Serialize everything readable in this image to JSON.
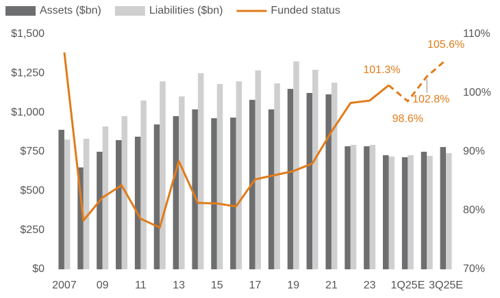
{
  "chart_data": {
    "type": "bar-line",
    "categories": [
      "2007",
      null,
      "09",
      null,
      "11",
      null,
      "13",
      null,
      "15",
      null,
      "17",
      null,
      "19",
      null,
      "21",
      null,
      "23",
      null,
      "1Q25E",
      null,
      "3Q25E"
    ],
    "series": [
      {
        "name": "Assets ($bn)",
        "color": "#6d6e70",
        "type": "bar",
        "values": [
          890,
          650,
          750,
          824,
          846,
          924,
          977,
          1020,
          964,
          968,
          1081,
          1020,
          1151,
          1125,
          1116,
          785,
          785,
          728,
          715,
          750,
          780
        ]
      },
      {
        "name": "Liabilities ($bn)",
        "color": "#cfcfcf",
        "type": "bar",
        "values": [
          828,
          833,
          911,
          977,
          1077,
          1199,
          1103,
          1251,
          1182,
          1199,
          1269,
          1186,
          1326,
          1273,
          1190,
          794,
          794,
          719,
          728,
          724,
          741
        ]
      },
      {
        "name": "Funded status",
        "color": "#e07b1a",
        "type": "line",
        "axis": "y2",
        "dashed_from": 17,
        "values": [
          106.9,
          78.3,
          82.2,
          84.3,
          78.6,
          77.1,
          88.4,
          81.3,
          81.2,
          80.7,
          85.3,
          86.0,
          86.7,
          88.0,
          93.4,
          98.3,
          98.7,
          101.3,
          98.6,
          102.8,
          105.6
        ],
        "value_labels": [
          null,
          null,
          null,
          null,
          null,
          null,
          null,
          null,
          null,
          null,
          null,
          null,
          null,
          null,
          null,
          null,
          null,
          "101.3%",
          "98.6%",
          "102.8%",
          "105.6%"
        ]
      }
    ],
    "ylim": [
      0,
      1500
    ],
    "yticks": [
      {
        "value": 0,
        "label": "$0"
      },
      {
        "value": 250,
        "label": "$250"
      },
      {
        "value": 500,
        "label": "$500"
      },
      {
        "value": 750,
        "label": "$750"
      },
      {
        "value": 1000,
        "label": "$1,000"
      },
      {
        "value": 1250,
        "label": "$1,250"
      },
      {
        "value": 1500,
        "label": "$1,500"
      }
    ],
    "y2lim": [
      70,
      110
    ],
    "y2ticks": [
      {
        "value": 70,
        "label": "70%"
      },
      {
        "value": 80,
        "label": "80%"
      },
      {
        "value": 90,
        "label": "90%"
      },
      {
        "value": 100,
        "label": "100%"
      },
      {
        "value": 110,
        "label": "110%"
      }
    ],
    "legend": "top-left"
  }
}
